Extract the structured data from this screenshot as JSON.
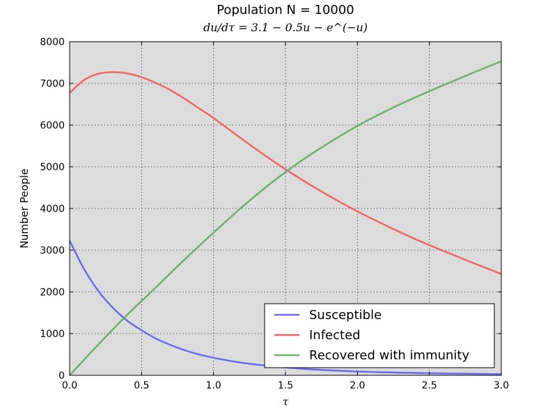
{
  "chart_data": {
    "type": "line",
    "title": "Population N = 10000",
    "subtitle": "du/dτ = 3.1 − 0.5u − e^(−u)",
    "xlabel": "τ",
    "ylabel": "Number People",
    "xlim": [
      0,
      3.0
    ],
    "ylim": [
      0,
      8000
    ],
    "x_ticks": [
      0.0,
      0.5,
      1.0,
      1.5,
      2.0,
      2.5,
      3.0
    ],
    "x_tick_labels": [
      "0.0",
      "0.5",
      "1.0",
      "1.5",
      "2.0",
      "2.5",
      "3.0"
    ],
    "y_ticks": [
      0,
      1000,
      2000,
      3000,
      4000,
      5000,
      6000,
      7000,
      8000
    ],
    "y_tick_labels": [
      "0",
      "1000",
      "2000",
      "3000",
      "4000",
      "5000",
      "6000",
      "7000",
      "8000"
    ],
    "grid": true,
    "plot_background": "#dcdcdc",
    "legend_position": "lower-right",
    "series": [
      {
        "name": "Susceptible",
        "color": "#6b6bf0",
        "x": [
          0.0,
          0.1,
          0.2,
          0.3,
          0.4,
          0.5,
          0.6,
          0.7,
          0.8,
          0.9,
          1.0,
          1.2,
          1.4,
          1.6,
          1.8,
          2.0,
          2.2,
          2.5,
          2.8,
          3.0
        ],
        "y": [
          3230,
          2550,
          2020,
          1620,
          1310,
          1080,
          880,
          730,
          600,
          500,
          420,
          300,
          220,
          160,
          120,
          90,
          70,
          50,
          35,
          30
        ]
      },
      {
        "name": "Infected",
        "color": "#ee6666",
        "x": [
          0.0,
          0.1,
          0.2,
          0.3,
          0.4,
          0.5,
          0.6,
          0.7,
          0.8,
          0.9,
          1.0,
          1.2,
          1.4,
          1.6,
          1.8,
          2.0,
          2.2,
          2.4,
          2.6,
          2.8,
          3.0
        ],
        "y": [
          6770,
          7080,
          7230,
          7270,
          7240,
          7150,
          7010,
          6840,
          6630,
          6400,
          6170,
          5660,
          5170,
          4720,
          4310,
          3930,
          3590,
          3270,
          2980,
          2700,
          2430
        ]
      },
      {
        "name": "Recovered with immunity",
        "color": "#6cb06c",
        "x": [
          0.0,
          0.2,
          0.4,
          0.6,
          0.8,
          1.0,
          1.2,
          1.4,
          1.6,
          1.8,
          2.0,
          2.2,
          2.4,
          2.6,
          2.8,
          3.0
        ],
        "y": [
          0,
          740,
          1450,
          2110,
          2780,
          3420,
          4040,
          4610,
          5120,
          5570,
          5980,
          6340,
          6660,
          6960,
          7250,
          7530
        ]
      }
    ]
  }
}
